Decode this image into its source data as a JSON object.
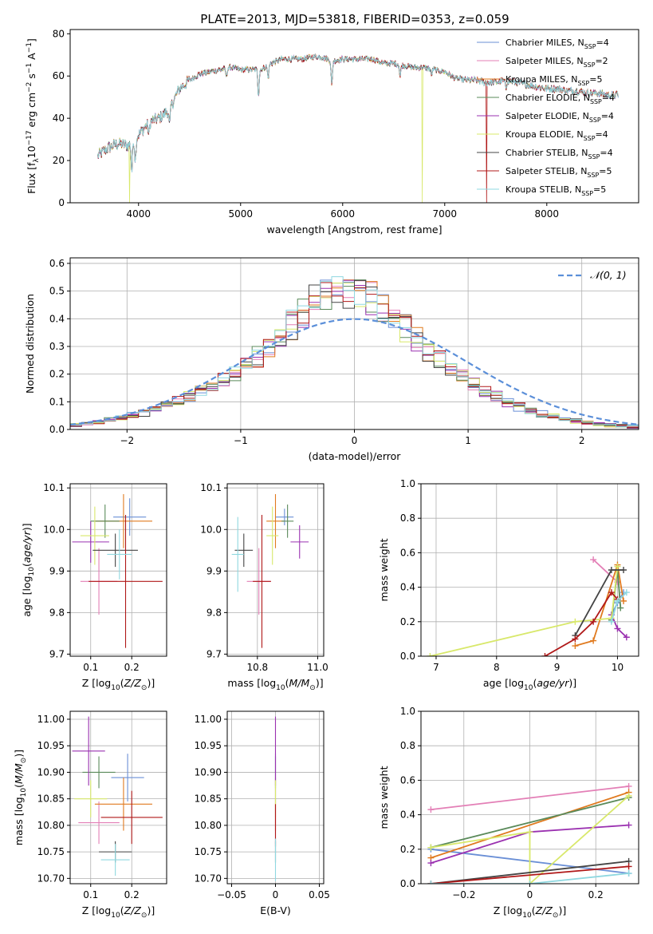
{
  "figure_title": "PLATE=2013, MJD=53818, FIBERID=0353, z=0.059",
  "colors": {
    "Chabrier MILES": "#6a8fd6",
    "Salpeter MILES": "#e37fb6",
    "Kroupa MILES": "#e07a1f",
    "Chabrier ELODIE": "#5a8a5a",
    "Salpeter ELODIE": "#9a30b0",
    "Kroupa ELODIE": "#d8e86a",
    "Chabrier STELIB": "#444444",
    "Salpeter STELIB": "#b01818",
    "Kroupa STELIB": "#8fd8e0"
  },
  "chart_data": [
    {
      "id": "spectrum",
      "type": "line",
      "title": "",
      "xlabel": "wavelength [Angstrom, rest frame]",
      "ylabel": "Flux [f_λ 10^-17 erg cm^-2 s^-1 A^-1]",
      "xlim": [
        3330,
        8900
      ],
      "ylim": [
        0,
        82
      ],
      "xticks": [
        4000,
        5000,
        6000,
        7000,
        8000
      ],
      "yticks": [
        0,
        20,
        40,
        60,
        80
      ],
      "grid": false,
      "legend_position": "top-right",
      "legend": [
        {
          "name": "Chabrier MILES",
          "nssp": "4"
        },
        {
          "name": "Salpeter MILES",
          "nssp": "2"
        },
        {
          "name": "Kroupa MILES",
          "nssp": "5"
        },
        {
          "name": "Chabrier ELODIE",
          "nssp": "4"
        },
        {
          "name": "Salpeter ELODIE",
          "nssp": "4"
        },
        {
          "name": "Kroupa ELODIE",
          "nssp": "4"
        },
        {
          "name": "Chabrier STELIB",
          "nssp": "4"
        },
        {
          "name": "Salpeter STELIB",
          "nssp": "5"
        },
        {
          "name": "Kroupa STELIB",
          "nssp": "5"
        }
      ],
      "continuum": {
        "x": [
          3600,
          3700,
          3800,
          3900,
          4000,
          4100,
          4200,
          4300,
          4400,
          4500,
          4600,
          4700,
          4800,
          4900,
          5000,
          5100,
          5200,
          5300,
          5400,
          5500,
          5600,
          5700,
          5800,
          5900,
          6000,
          6100,
          6200,
          6300,
          6400,
          6500,
          6600,
          6700,
          6800,
          6900,
          7000,
          7100,
          7200,
          7300,
          7400,
          7500,
          7600,
          7700,
          7800,
          7900,
          8000,
          8100,
          8200,
          8300,
          8400,
          8500,
          8600,
          8700
        ],
        "y": [
          22,
          26,
          28,
          27,
          32,
          38,
          40,
          44,
          54,
          58,
          61,
          62,
          63,
          64,
          63,
          63,
          63,
          66,
          68,
          68,
          68,
          69,
          69,
          67,
          68,
          68,
          68,
          68,
          66,
          66,
          65,
          64,
          64,
          63,
          62,
          59,
          58,
          58,
          57,
          57,
          58,
          57,
          56,
          55,
          54,
          54,
          53,
          53,
          52,
          52,
          51,
          51
        ]
      },
      "absorption_dips": [
        {
          "x": 3934,
          "depth": 14
        },
        {
          "x": 3969,
          "depth": 10
        },
        {
          "x": 4101,
          "depth": 6
        },
        {
          "x": 4304,
          "depth": 8
        },
        {
          "x": 4861,
          "depth": 4
        },
        {
          "x": 5175,
          "depth": 12
        },
        {
          "x": 5270,
          "depth": 6
        },
        {
          "x": 5893,
          "depth": 12
        },
        {
          "x": 6563,
          "depth": 6
        },
        {
          "x": 6870,
          "depth": 3
        },
        {
          "x": 7600,
          "depth": 4
        }
      ],
      "masked_spikes": [
        {
          "x": 3910,
          "to": 0,
          "series": "Kroupa ELODIE"
        },
        {
          "x": 6780,
          "to": 0,
          "series": "Kroupa ELODIE"
        },
        {
          "x": 7410,
          "to": 0,
          "series": "Salpeter STELIB"
        }
      ]
    },
    {
      "id": "residuals",
      "type": "histogram",
      "title": "",
      "xlabel": "(data-model)/error",
      "ylabel": "Normed distribution",
      "xlim": [
        -2.5,
        2.5
      ],
      "ylim": [
        0,
        0.62
      ],
      "xticks": [
        -2,
        -1,
        0,
        1,
        2
      ],
      "yticks": [
        0.0,
        0.1,
        0.2,
        0.3,
        0.4,
        0.5,
        0.6
      ],
      "grid": true,
      "legend_position": "top-right",
      "legend_label": "𝒩(0, 1)",
      "bin_width": 0.1,
      "bin_start": -2.5,
      "base": [
        0.018,
        0.022,
        0.028,
        0.034,
        0.042,
        0.052,
        0.062,
        0.074,
        0.088,
        0.104,
        0.12,
        0.138,
        0.158,
        0.18,
        0.205,
        0.232,
        0.262,
        0.298,
        0.338,
        0.38,
        0.42,
        0.455,
        0.48,
        0.495,
        0.5,
        0.49,
        0.47,
        0.44,
        0.405,
        0.368,
        0.33,
        0.29,
        0.255,
        0.222,
        0.19,
        0.162,
        0.138,
        0.118,
        0.098,
        0.082,
        0.068,
        0.056,
        0.046,
        0.038,
        0.031,
        0.025,
        0.02,
        0.016,
        0.013,
        0.011
      ],
      "series_names": [
        "Chabrier MILES",
        "Salpeter MILES",
        "Kroupa MILES",
        "Chabrier ELODIE",
        "Salpeter ELODIE",
        "Kroupa ELODIE",
        "Chabrier STELIB",
        "Salpeter STELIB",
        "Kroupa STELIB"
      ],
      "normal_curve": {
        "mean": 0,
        "sigma": 1,
        "color": "#5b8fd9"
      }
    },
    {
      "id": "age-vs-Z",
      "type": "errorbar",
      "xlabel": "Z [log10(Z/Z☉)]",
      "ylabel": "age  [log10(age/yr)]",
      "xlim": [
        0.05,
        0.285
      ],
      "ylim": [
        9.695,
        10.11
      ],
      "xticks": [
        0.1,
        0.2
      ],
      "yticks": [
        9.7,
        9.8,
        9.9,
        10.0,
        10.1
      ],
      "grid": true,
      "points": [
        {
          "series": "Chabrier MILES",
          "x": 0.195,
          "xerr": 0.04,
          "y": 10.03,
          "yerr": 0.045
        },
        {
          "series": "Salpeter MILES",
          "x": 0.12,
          "xerr": 0.045,
          "y": 9.875,
          "yerr": 0.08
        },
        {
          "series": "Kroupa MILES",
          "x": 0.18,
          "xerr": 0.07,
          "y": 10.02,
          "yerr": 0.065
        },
        {
          "series": "Chabrier ELODIE",
          "x": 0.135,
          "xerr": 0.035,
          "y": 10.02,
          "yerr": 0.04
        },
        {
          "series": "Salpeter ELODIE",
          "x": 0.1,
          "xerr": 0.045,
          "y": 9.97,
          "yerr": 0.05
        },
        {
          "series": "Kroupa ELODIE",
          "x": 0.11,
          "xerr": 0.035,
          "y": 9.985,
          "yerr": 0.07
        },
        {
          "series": "Chabrier STELIB",
          "x": 0.16,
          "xerr": 0.055,
          "y": 9.95,
          "yerr": 0.04
        },
        {
          "series": "Salpeter STELIB",
          "x": 0.185,
          "xerr": 0.09,
          "y": 9.875,
          "yerr": 0.16
        },
        {
          "series": "Kroupa STELIB",
          "x": 0.17,
          "xerr": 0.03,
          "y": 9.94,
          "yerr": 0.06
        }
      ]
    },
    {
      "id": "age-vs-mass",
      "type": "errorbar",
      "xlabel": "mass [log10(M/M☉)]",
      "ylabel": "",
      "xlim": [
        10.7,
        11.02
      ],
      "ylim": [
        9.695,
        10.11
      ],
      "xticks": [
        10.8,
        11.0
      ],
      "yticks": [
        9.7,
        9.8,
        9.9,
        10.0,
        10.1
      ],
      "grid": true,
      "points": [
        {
          "series": "Chabrier MILES",
          "x": 10.89,
          "xerr": 0.03,
          "y": 10.03,
          "yerr": 0.02
        },
        {
          "series": "Salpeter MILES",
          "x": 10.805,
          "xerr": 0.04,
          "y": 9.875,
          "yerr": 0.08
        },
        {
          "series": "Kroupa MILES",
          "x": 10.86,
          "xerr": 0.03,
          "y": 10.02,
          "yerr": 0.065
        },
        {
          "series": "Chabrier ELODIE",
          "x": 10.9,
          "xerr": 0.02,
          "y": 10.02,
          "yerr": 0.04
        },
        {
          "series": "Salpeter ELODIE",
          "x": 10.94,
          "xerr": 0.03,
          "y": 9.97,
          "yerr": 0.04
        },
        {
          "series": "Kroupa ELODIE",
          "x": 10.85,
          "xerr": 0.02,
          "y": 9.985,
          "yerr": 0.07
        },
        {
          "series": "Chabrier STELIB",
          "x": 10.755,
          "xerr": 0.03,
          "y": 9.95,
          "yerr": 0.04
        },
        {
          "series": "Salpeter STELIB",
          "x": 10.815,
          "xerr": 0.03,
          "y": 9.875,
          "yerr": 0.16
        },
        {
          "series": "Kroupa STELIB",
          "x": 10.735,
          "xerr": 0.02,
          "y": 9.94,
          "yerr": 0.09
        }
      ]
    },
    {
      "id": "weight-vs-age",
      "type": "line",
      "xlabel": "age  [log10(age/yr)]",
      "ylabel": "mass weight",
      "xlim": [
        6.75,
        10.35
      ],
      "ylim": [
        0,
        1.0
      ],
      "xticks": [
        7,
        8,
        9,
        10
      ],
      "yticks": [
        0.0,
        0.2,
        0.4,
        0.6,
        0.8,
        1.0
      ],
      "grid": true,
      "series": [
        {
          "name": "Chabrier MILES",
          "x": [
            9.9,
            10.0,
            10.1
          ],
          "y": [
            0.24,
            0.31,
            0.37
          ]
        },
        {
          "name": "Salpeter MILES",
          "x": [
            9.6,
            10.0
          ],
          "y": [
            0.56,
            0.43
          ]
        },
        {
          "name": "Kroupa MILES",
          "x": [
            9.3,
            9.6,
            10.0,
            10.1
          ],
          "y": [
            0.06,
            0.09,
            0.53,
            0.32
          ]
        },
        {
          "name": "Chabrier ELODIE",
          "x": [
            9.9,
            10.0,
            10.05
          ],
          "y": [
            0.21,
            0.5,
            0.28
          ]
        },
        {
          "name": "Salpeter ELODIE",
          "x": [
            9.9,
            10.0,
            10.15
          ],
          "y": [
            0.24,
            0.16,
            0.11
          ]
        },
        {
          "name": "Kroupa ELODIE",
          "x": [
            6.9,
            9.3,
            9.9,
            10.0
          ],
          "y": [
            0.0,
            0.2,
            0.22,
            0.52
          ]
        },
        {
          "name": "Chabrier STELIB",
          "x": [
            9.3,
            9.9,
            10.1
          ],
          "y": [
            0.12,
            0.5,
            0.5
          ]
        },
        {
          "name": "Salpeter STELIB",
          "x": [
            8.8,
            9.3,
            9.6,
            9.9,
            10.0
          ],
          "y": [
            0.0,
            0.1,
            0.2,
            0.37,
            0.33
          ]
        },
        {
          "name": "Kroupa STELIB",
          "x": [
            9.9,
            10.0,
            10.15
          ],
          "y": [
            0.2,
            0.32,
            0.37
          ]
        }
      ]
    },
    {
      "id": "mass-vs-Z",
      "type": "errorbar",
      "xlabel": "Z [log10(Z/Z☉)]",
      "ylabel": "mass [log10(M/M☉)]",
      "xlim": [
        0.05,
        0.285
      ],
      "ylim": [
        10.69,
        11.015
      ],
      "xticks": [
        0.1,
        0.2
      ],
      "yticks": [
        10.7,
        10.75,
        10.8,
        10.85,
        10.9,
        10.95,
        11.0
      ],
      "grid": true,
      "points": [
        {
          "series": "Chabrier MILES",
          "x": 0.19,
          "xerr": 0.04,
          "y": 10.89,
          "yerr": 0.045
        },
        {
          "series": "Salpeter MILES",
          "x": 0.12,
          "xerr": 0.05,
          "y": 10.805,
          "yerr": 0.04
        },
        {
          "series": "Kroupa MILES",
          "x": 0.18,
          "xerr": 0.07,
          "y": 10.84,
          "yerr": 0.05
        },
        {
          "series": "Chabrier ELODIE",
          "x": 0.12,
          "xerr": 0.04,
          "y": 10.9,
          "yerr": 0.03
        },
        {
          "series": "Salpeter ELODIE",
          "x": 0.095,
          "xerr": 0.04,
          "y": 10.94,
          "yerr": 0.065
        },
        {
          "series": "Kroupa ELODIE",
          "x": 0.1,
          "xerr": 0.04,
          "y": 10.85,
          "yerr": 0.035
        },
        {
          "series": "Chabrier STELIB",
          "x": 0.16,
          "xerr": 0.04,
          "y": 10.75,
          "yerr": 0.02
        },
        {
          "series": "Salpeter STELIB",
          "x": 0.2,
          "xerr": 0.075,
          "y": 10.815,
          "yerr": 0.05
        },
        {
          "series": "Kroupa STELIB",
          "x": 0.16,
          "xerr": 0.035,
          "y": 10.735,
          "yerr": 0.03
        }
      ]
    },
    {
      "id": "mass-vs-ebv",
      "type": "errorbar",
      "xlabel": "E(B-V)",
      "ylabel": "",
      "xlim": [
        -0.055,
        0.055
      ],
      "ylim": [
        10.69,
        11.015
      ],
      "xticks": [
        -0.05,
        0.0,
        0.05
      ],
      "yticks": [
        10.7,
        10.75,
        10.8,
        10.85,
        10.9,
        10.95,
        11.0
      ],
      "grid": true,
      "points": [
        {
          "series": "Chabrier MILES",
          "x": 0.0,
          "xerr": 0,
          "y": 10.89,
          "yerr": 0.045
        },
        {
          "series": "Salpeter MILES",
          "x": 0.0,
          "xerr": 0,
          "y": 10.805,
          "yerr": 0.04
        },
        {
          "series": "Kroupa MILES",
          "x": 0.0,
          "xerr": 0,
          "y": 10.84,
          "yerr": 0.05
        },
        {
          "series": "Chabrier ELODIE",
          "x": 0.0,
          "xerr": 0,
          "y": 10.9,
          "yerr": 0.03
        },
        {
          "series": "Salpeter ELODIE",
          "x": 0.0,
          "xerr": 0,
          "y": 10.94,
          "yerr": 0.065
        },
        {
          "series": "Kroupa ELODIE",
          "x": 0.0,
          "xerr": 0,
          "y": 10.85,
          "yerr": 0.035
        },
        {
          "series": "Chabrier STELIB",
          "x": 0.0,
          "xerr": 0,
          "y": 10.75,
          "yerr": 0.02
        },
        {
          "series": "Salpeter STELIB",
          "x": 0.0,
          "xerr": 0,
          "y": 10.8,
          "yerr": 0.04
        },
        {
          "series": "Kroupa STELIB",
          "x": 0.0,
          "xerr": 0,
          "y": 10.735,
          "yerr": 0.04
        }
      ]
    },
    {
      "id": "weight-vs-Z",
      "type": "line",
      "xlabel": "Z [log10(Z/Z☉)]",
      "ylabel": "mass weight",
      "xlim": [
        -0.33,
        0.33
      ],
      "ylim": [
        0,
        1.0
      ],
      "xticks": [
        -0.2,
        0.0,
        0.2
      ],
      "yticks": [
        0.0,
        0.2,
        0.4,
        0.6,
        0.8,
        1.0
      ],
      "grid": true,
      "series": [
        {
          "name": "Chabrier MILES",
          "x": [
            -0.3,
            0.3
          ],
          "y": [
            0.2,
            0.06
          ]
        },
        {
          "name": "Salpeter MILES",
          "x": [
            -0.3,
            0.3
          ],
          "y": [
            0.43,
            0.565
          ]
        },
        {
          "name": "Kroupa MILES",
          "x": [
            -0.3,
            0.3
          ],
          "y": [
            0.15,
            0.53
          ]
        },
        {
          "name": "Chabrier ELODIE",
          "x": [
            -0.3,
            0.3
          ],
          "y": [
            0.21,
            0.5
          ]
        },
        {
          "name": "Salpeter ELODIE",
          "x": [
            -0.3,
            0.0,
            0.3
          ],
          "y": [
            0.12,
            0.3,
            0.34
          ]
        },
        {
          "name": "Kroupa ELODIE",
          "x": [
            -0.3,
            0.0,
            0.0,
            0.3
          ],
          "y": [
            0.21,
            0.3,
            0.0,
            0.51
          ]
        },
        {
          "name": "Chabrier STELIB",
          "x": [
            -0.3,
            0.3
          ],
          "y": [
            0.0,
            0.13
          ]
        },
        {
          "name": "Salpeter STELIB",
          "x": [
            -0.3,
            0.3
          ],
          "y": [
            0.0,
            0.1
          ]
        },
        {
          "name": "Kroupa STELIB",
          "x": [
            -0.3,
            0.0,
            0.3
          ],
          "y": [
            0.0,
            0.0,
            0.06
          ]
        }
      ]
    }
  ]
}
